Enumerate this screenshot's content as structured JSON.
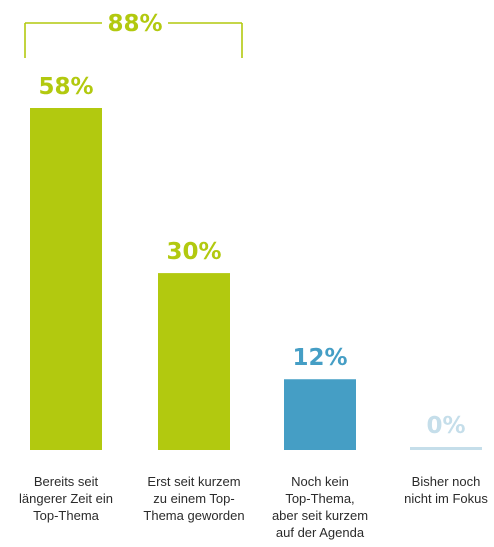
{
  "chart_data": {
    "type": "bar",
    "categories": [
      [
        "Bereits seit",
        "längerer Zeit ein",
        "Top-Thema"
      ],
      [
        "Erst seit kurzem",
        "zu einem Top-",
        "Thema geworden"
      ],
      [
        "Noch kein",
        "Top-Thema,",
        "aber seit kurzem",
        "auf der Agenda"
      ],
      [
        "Bisher noch",
        "nicht im Fokus"
      ]
    ],
    "values": [
      58,
      30,
      12,
      0
    ],
    "value_labels": [
      "58%",
      "30%",
      "12%",
      "0%"
    ],
    "colors": [
      "#b2c90f",
      "#b2c90f",
      "#459ec5",
      "#c5deea"
    ],
    "ylim": [
      0,
      58
    ],
    "bracket": {
      "label": "88%",
      "spans": [
        0,
        1
      ],
      "color": "#b2c90f"
    },
    "title": "",
    "xlabel": "",
    "ylabel": ""
  }
}
